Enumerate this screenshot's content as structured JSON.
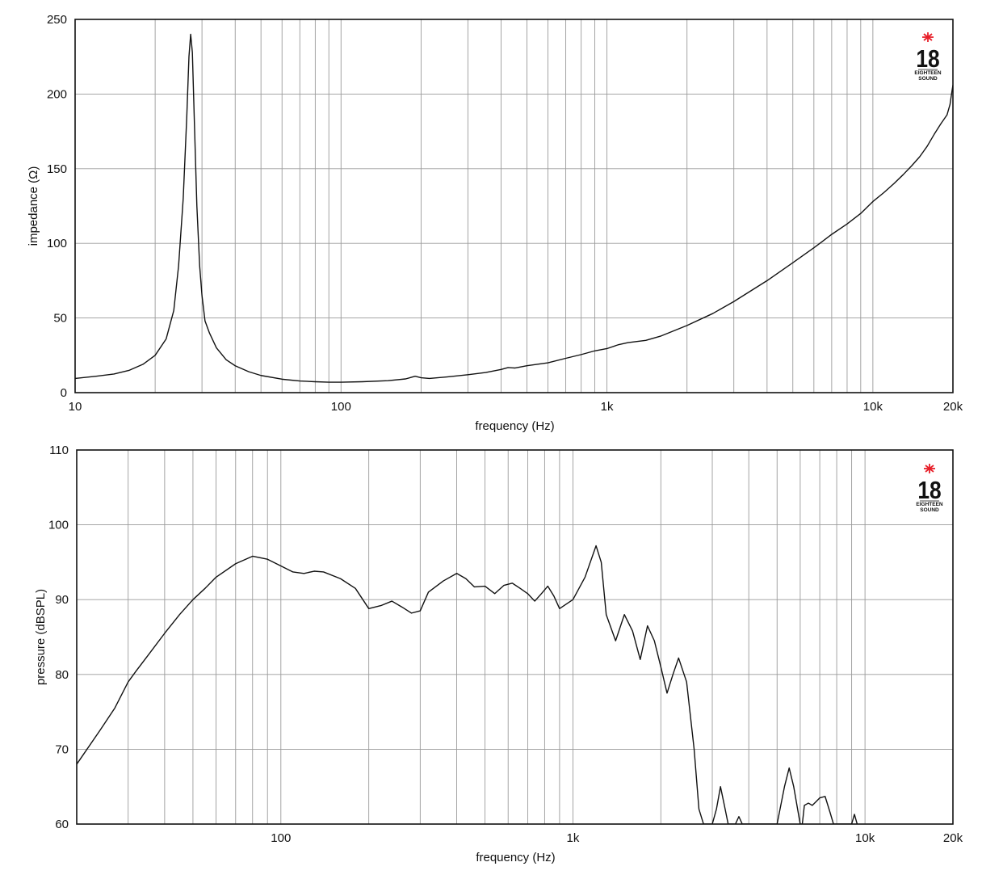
{
  "logo": {
    "number": "18",
    "line1": "EIGHTEEN",
    "line2": "SOUND",
    "star_color": "#e8202a"
  },
  "chart_data": [
    {
      "type": "line",
      "xscale": "log",
      "xlim": [
        10,
        20000
      ],
      "ylim": [
        0,
        250
      ],
      "xlabel": "frequency (Hz)",
      "ylabel": "impedance (Ω)",
      "yticks": [
        0,
        50,
        100,
        150,
        200,
        250
      ],
      "xtick_labels": [
        {
          "value": 10,
          "label": "10"
        },
        {
          "value": 100,
          "label": "100"
        },
        {
          "value": 1000,
          "label": "1k"
        },
        {
          "value": 10000,
          "label": "10k"
        },
        {
          "value": 20000,
          "label": "20k"
        }
      ],
      "grid": true,
      "series": [
        {
          "points": [
            [
              10,
              9.5
            ],
            [
              12,
              11
            ],
            [
              14,
              12.5
            ],
            [
              16,
              15
            ],
            [
              18,
              19
            ],
            [
              20,
              25
            ],
            [
              22,
              36
            ],
            [
              23.5,
              55
            ],
            [
              24.5,
              85
            ],
            [
              25.5,
              130
            ],
            [
              26.3,
              185
            ],
            [
              26.8,
              225
            ],
            [
              27.2,
              240
            ],
            [
              27.6,
              228
            ],
            [
              28.1,
              180
            ],
            [
              28.7,
              125
            ],
            [
              29.4,
              85
            ],
            [
              30,
              65
            ],
            [
              30.8,
              48
            ],
            [
              32,
              40
            ],
            [
              34,
              30
            ],
            [
              37,
              22
            ],
            [
              40,
              18
            ],
            [
              45,
              14
            ],
            [
              50,
              11.5
            ],
            [
              60,
              9
            ],
            [
              70,
              7.8
            ],
            [
              80,
              7.3
            ],
            [
              90,
              7
            ],
            [
              100,
              7
            ],
            [
              120,
              7.3
            ],
            [
              150,
              8
            ],
            [
              175,
              9.2
            ],
            [
              190,
              11
            ],
            [
              200,
              10
            ],
            [
              215,
              9.5
            ],
            [
              250,
              10.5
            ],
            [
              300,
              12
            ],
            [
              350,
              13.5
            ],
            [
              400,
              15.5
            ],
            [
              425,
              16.8
            ],
            [
              450,
              16.5
            ],
            [
              500,
              18
            ],
            [
              600,
              20
            ],
            [
              700,
              23
            ],
            [
              800,
              25.5
            ],
            [
              900,
              28
            ],
            [
              1000,
              29.5
            ],
            [
              1100,
              32
            ],
            [
              1200,
              33.5
            ],
            [
              1400,
              35
            ],
            [
              1600,
              38
            ],
            [
              2000,
              45
            ],
            [
              2500,
              53
            ],
            [
              3000,
              61
            ],
            [
              4000,
              75
            ],
            [
              5000,
              87
            ],
            [
              6000,
              97
            ],
            [
              7000,
              106
            ],
            [
              8000,
              113
            ],
            [
              9000,
              120
            ],
            [
              10000,
              128
            ],
            [
              11000,
              134
            ],
            [
              12000,
              140
            ],
            [
              13000,
              146
            ],
            [
              14000,
              152
            ],
            [
              15000,
              158
            ],
            [
              16000,
              165
            ],
            [
              17000,
              173
            ],
            [
              18000,
              180
            ],
            [
              19000,
              186
            ],
            [
              19500,
              193
            ],
            [
              19800,
              201
            ],
            [
              20000,
              206
            ]
          ]
        }
      ]
    },
    {
      "type": "line",
      "xscale": "log",
      "xlim": [
        20,
        20000
      ],
      "ylim": [
        60,
        110
      ],
      "xlabel": "frequency (Hz)",
      "ylabel": "pressure (dBSPL)",
      "yticks": [
        60,
        70,
        80,
        90,
        100,
        110
      ],
      "xtick_labels": [
        {
          "value": 100,
          "label": "100"
        },
        {
          "value": 1000,
          "label": "1k"
        },
        {
          "value": 10000,
          "label": "10k"
        },
        {
          "value": 20000,
          "label": "20k"
        }
      ],
      "grid": true,
      "series": [
        {
          "points": [
            [
              20,
              68
            ],
            [
              24,
              72.5
            ],
            [
              27,
              75.5
            ],
            [
              30,
              79
            ],
            [
              32,
              80.5
            ],
            [
              35,
              82.5
            ],
            [
              40,
              85.5
            ],
            [
              45,
              88
            ],
            [
              50,
              90
            ],
            [
              55,
              91.5
            ],
            [
              60,
              93
            ],
            [
              70,
              94.8
            ],
            [
              80,
              95.8
            ],
            [
              90,
              95.4
            ],
            [
              100,
              94.5
            ],
            [
              110,
              93.7
            ],
            [
              120,
              93.5
            ],
            [
              130,
              93.8
            ],
            [
              140,
              93.7
            ],
            [
              160,
              92.8
            ],
            [
              180,
              91.5
            ],
            [
              200,
              88.8
            ],
            [
              220,
              89.2
            ],
            [
              240,
              89.8
            ],
            [
              260,
              89
            ],
            [
              280,
              88.2
            ],
            [
              300,
              88.5
            ],
            [
              320,
              91
            ],
            [
              360,
              92.5
            ],
            [
              400,
              93.5
            ],
            [
              430,
              92.8
            ],
            [
              460,
              91.7
            ],
            [
              500,
              91.8
            ],
            [
              540,
              90.8
            ],
            [
              580,
              91.9
            ],
            [
              620,
              92.2
            ],
            [
              660,
              91.5
            ],
            [
              700,
              90.8
            ],
            [
              740,
              89.8
            ],
            [
              780,
              90.8
            ],
            [
              820,
              91.8
            ],
            [
              860,
              90.5
            ],
            [
              900,
              88.8
            ],
            [
              1000,
              90
            ],
            [
              1100,
              93
            ],
            [
              1200,
              97.2
            ],
            [
              1250,
              95
            ],
            [
              1300,
              88
            ],
            [
              1400,
              84.5
            ],
            [
              1500,
              88
            ],
            [
              1600,
              85.8
            ],
            [
              1700,
              82
            ],
            [
              1800,
              86.5
            ],
            [
              1900,
              84.5
            ],
            [
              2000,
              81
            ],
            [
              2100,
              77.5
            ],
            [
              2200,
              80
            ],
            [
              2300,
              82.2
            ],
            [
              2450,
              79
            ],
            [
              2600,
              70
            ],
            [
              2700,
              62
            ],
            [
              2800,
              60
            ],
            [
              3000,
              60
            ],
            [
              3100,
              62
            ],
            [
              3200,
              65
            ],
            [
              3300,
              62.5
            ],
            [
              3400,
              60
            ],
            [
              3600,
              60
            ],
            [
              3700,
              61
            ],
            [
              3800,
              60
            ],
            [
              5000,
              60
            ],
            [
              5300,
              65
            ],
            [
              5500,
              67.5
            ],
            [
              5700,
              65
            ],
            [
              6000,
              60
            ],
            [
              6100,
              60
            ],
            [
              6200,
              62.5
            ],
            [
              6400,
              62.8
            ],
            [
              6600,
              62.5
            ],
            [
              6800,
              63
            ],
            [
              7000,
              63.5
            ],
            [
              7300,
              63.7
            ],
            [
              7600,
              61.5
            ],
            [
              7800,
              60
            ],
            [
              9000,
              60
            ],
            [
              9200,
              61.3
            ],
            [
              9400,
              60
            ]
          ]
        }
      ]
    }
  ]
}
